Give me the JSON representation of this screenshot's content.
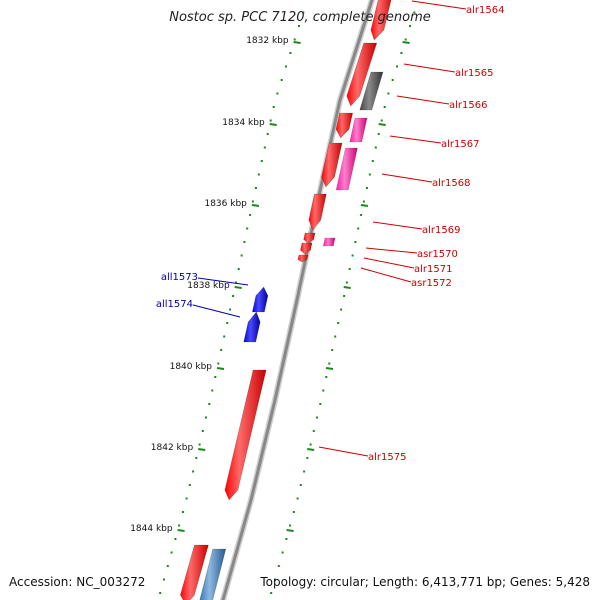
{
  "title": "Nostoc sp. PCC 7120, complete genome",
  "accession_text": "Accession: NC_003272",
  "summary_text": "Topology: circular; Length: 6,413,771 bp; Genes: 5,428",
  "colors": {
    "forward_gene": "#ff0000",
    "reverse_gene": "#0000ee",
    "forward_label": "#cc0000",
    "reverse_label": "#0000aa",
    "pink_feature": "#ff1aa8",
    "gray_feature": "#555555",
    "steelblue_feature": "#3a7dc0",
    "backbone": "#888888",
    "tick_color": "#1a8a1a"
  },
  "ticks": [
    {
      "label": "1832 kbp"
    },
    {
      "label": "1834 kbp"
    },
    {
      "label": "1836 kbp"
    },
    {
      "label": "1838 kbp"
    },
    {
      "label": "1840 kbp"
    },
    {
      "label": "1842 kbp"
    },
    {
      "label": "1844 kbp"
    }
  ],
  "genes": [
    {
      "name": "alr1564",
      "strand": "forward"
    },
    {
      "name": "alr1565",
      "strand": "forward"
    },
    {
      "name": "alr1566",
      "strand": "forward"
    },
    {
      "name": "alr1567",
      "strand": "forward"
    },
    {
      "name": "alr1568",
      "strand": "forward"
    },
    {
      "name": "alr1569",
      "strand": "forward"
    },
    {
      "name": "asr1570",
      "strand": "forward"
    },
    {
      "name": "alr1571",
      "strand": "forward"
    },
    {
      "name": "asr1572",
      "strand": "forward"
    },
    {
      "name": "all1573",
      "strand": "reverse"
    },
    {
      "name": "all1574",
      "strand": "reverse"
    },
    {
      "name": "alr1575",
      "strand": "forward"
    }
  ]
}
